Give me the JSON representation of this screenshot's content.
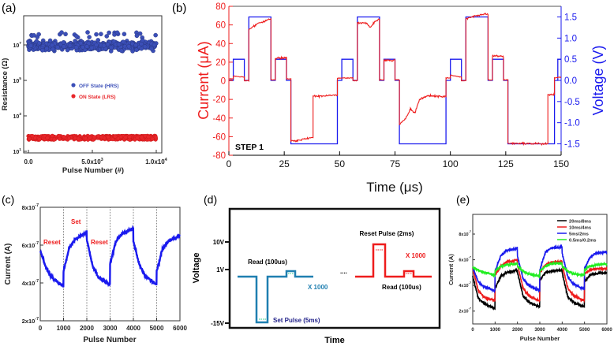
{
  "chart_data": [
    {
      "panel_label": "(a)",
      "type": "scatter",
      "xlabel": "Pulse Number (#)",
      "ylabel": "Resistance (Ω)",
      "y_scale": "log",
      "xlim": [
        0,
        10000
      ],
      "ylim": [
        10,
        500000000
      ],
      "x_ticks": [
        "0.0",
        "5.0x10^3",
        "1.0x10^4"
      ],
      "x_tick_values": [
        0,
        5000,
        10000
      ],
      "x_tick_labels": [
        {
          "base": "0.0",
          "exp": ""
        },
        {
          "base": "5.0x10",
          "exp": "3"
        },
        {
          "base": "1.0x10",
          "exp": "4"
        }
      ],
      "y_tick_values": [
        10,
        1000,
        100000,
        10000000
      ],
      "y_tick_labels": [
        {
          "base": "10",
          "exp": "1"
        },
        {
          "base": "10",
          "exp": "3"
        },
        {
          "base": "10",
          "exp": "5"
        },
        {
          "base": "10",
          "exp": "7"
        }
      ],
      "legend_position": "center",
      "series": [
        {
          "name": "OFF State (HRS)",
          "color": "#3b4fb8",
          "y_range": [
            3000000,
            60000000
          ],
          "n_points": 10000
        },
        {
          "name": "ON State (LRS)",
          "color": "#e8262a",
          "y_range": [
            45,
            75
          ],
          "n_points": 10000
        }
      ]
    },
    {
      "panel_label": "(b)",
      "type": "line",
      "xlabel": "Time (μs)",
      "ylabel": "Current (μA)",
      "ylabel_right": "Voltage (V)",
      "annotation": "STEP 1",
      "xlim": [
        0,
        150
      ],
      "ylim": [
        -80,
        80
      ],
      "ylim_right": [
        -1.77,
        1.75
      ],
      "x_ticks": [
        "0",
        "25",
        "50",
        "75",
        "100",
        "125",
        "150"
      ],
      "y_ticks": [
        "-80",
        "-60",
        "-40",
        "-20",
        "0",
        "20",
        "40",
        "60",
        "80"
      ],
      "y_ticks_right": [
        "-1.5",
        "-1.0",
        "-0.5",
        "0.0",
        "0.5",
        "1.0",
        "1.5"
      ],
      "series": [
        {
          "name": "Current",
          "axis": "left",
          "color": "#ee1c1c",
          "points": [
            [
              0,
              2
            ],
            [
              2,
              2
            ],
            [
              2,
              5
            ],
            [
              7,
              4
            ],
            [
              7,
              0
            ],
            [
              9,
              0
            ],
            [
              9,
              55
            ],
            [
              12,
              60
            ],
            [
              19,
              67
            ],
            [
              19,
              1
            ],
            [
              21,
              1
            ],
            [
              21,
              24
            ],
            [
              26,
              25
            ],
            [
              26,
              2
            ],
            [
              28,
              2
            ],
            [
              28,
              -65
            ],
            [
              33,
              -63
            ],
            [
              38,
              -61
            ],
            [
              38,
              -17
            ],
            [
              49,
              -15
            ],
            [
              49,
              3
            ],
            [
              56,
              3
            ],
            [
              56,
              0
            ],
            [
              58,
              0
            ],
            [
              58,
              62
            ],
            [
              62,
              62
            ],
            [
              64,
              57
            ],
            [
              66,
              64
            ],
            [
              68,
              66
            ],
            [
              68,
              1
            ],
            [
              70,
              1
            ],
            [
              70,
              22
            ],
            [
              75,
              22
            ],
            [
              75,
              1
            ],
            [
              77,
              1
            ],
            [
              77,
              -47
            ],
            [
              80,
              -40
            ],
            [
              82,
              -30
            ],
            [
              84,
              -35
            ],
            [
              86,
              -20
            ],
            [
              90,
              -16
            ],
            [
              98,
              -17
            ],
            [
              98,
              3
            ],
            [
              100,
              3
            ],
            [
              100,
              6
            ],
            [
              105,
              4
            ],
            [
              105,
              0
            ],
            [
              107,
              0
            ],
            [
              107,
              67
            ],
            [
              112,
              70
            ],
            [
              117,
              72
            ],
            [
              117,
              1
            ],
            [
              119,
              1
            ],
            [
              119,
              27
            ],
            [
              124,
              26
            ],
            [
              124,
              1
            ],
            [
              126,
              1
            ],
            [
              126,
              -67
            ],
            [
              144,
              -68
            ],
            [
              144,
              -15
            ],
            [
              147,
              -15
            ],
            [
              147,
              3
            ],
            [
              150,
              4
            ]
          ]
        },
        {
          "name": "Voltage",
          "axis": "right",
          "color": "#1a1aee",
          "points": [
            [
              0,
              0
            ],
            [
              2,
              0
            ],
            [
              2,
              0.5
            ],
            [
              7,
              0.5
            ],
            [
              7,
              0
            ],
            [
              9,
              0
            ],
            [
              9,
              1.5
            ],
            [
              19,
              1.5
            ],
            [
              19,
              0
            ],
            [
              21,
              0
            ],
            [
              21,
              0.5
            ],
            [
              26,
              0.5
            ],
            [
              26,
              0
            ],
            [
              28,
              0
            ],
            [
              28,
              -1.5
            ],
            [
              49,
              -1.5
            ],
            [
              49,
              0
            ],
            [
              51,
              0
            ],
            [
              51,
              0.5
            ],
            [
              56,
              0.5
            ],
            [
              56,
              0
            ],
            [
              58,
              0
            ],
            [
              58,
              1.5
            ],
            [
              68,
              1.5
            ],
            [
              68,
              0
            ],
            [
              70,
              0
            ],
            [
              70,
              0.5
            ],
            [
              75,
              0.5
            ],
            [
              75,
              0
            ],
            [
              77,
              0
            ],
            [
              77,
              -1.5
            ],
            [
              98,
              -1.5
            ],
            [
              98,
              0
            ],
            [
              100,
              0
            ],
            [
              100,
              0.5
            ],
            [
              105,
              0.5
            ],
            [
              105,
              0
            ],
            [
              107,
              0
            ],
            [
              107,
              1.5
            ],
            [
              117,
              1.5
            ],
            [
              117,
              0
            ],
            [
              119,
              0
            ],
            [
              119,
              0.5
            ],
            [
              124,
              0.5
            ],
            [
              124,
              0
            ],
            [
              126,
              0
            ],
            [
              126,
              -1.5
            ],
            [
              147,
              -1.5
            ],
            [
              147,
              0
            ],
            [
              148.5,
              0
            ],
            [
              148.5,
              0.5
            ],
            [
              150,
              0.5
            ]
          ]
        }
      ]
    },
    {
      "panel_label": "(c)",
      "type": "line",
      "xlabel": "Pulse Number",
      "ylabel": "Current (A)",
      "xlim": [
        0,
        6000
      ],
      "ylim": [
        2e-07,
        8e-07
      ],
      "x_ticks": [
        "0",
        "1000",
        "2000",
        "3000",
        "4000",
        "5000",
        "6000"
      ],
      "y_tick_labels": [
        {
          "base": "2x10",
          "exp": "-7"
        },
        {
          "base": "4x10",
          "exp": "-7"
        },
        {
          "base": "6x10",
          "exp": "-7"
        },
        {
          "base": "8x10",
          "exp": "-7"
        }
      ],
      "annotations": [
        "Reset",
        "Set",
        "Reset"
      ],
      "annotation_color": "#ee1c1c",
      "y_unit": "1e-7 A",
      "series": [
        {
          "color": "#1a1aee",
          "x": [
            0,
            250,
            500,
            999,
            1000,
            1250,
            1500,
            1999,
            2000,
            2250,
            2500,
            2999,
            3000,
            3250,
            3500,
            3999,
            4000,
            4250,
            4500,
            4999,
            5000,
            5250,
            5500,
            6000
          ],
          "y": [
            5.7,
            4.8,
            4.3,
            3.8,
            4.6,
            5.9,
            6.3,
            6.7,
            6.3,
            4.9,
            4.3,
            3.9,
            5.0,
            6.2,
            6.6,
            6.9,
            6.2,
            5.0,
            4.4,
            3.9,
            4.6,
            5.8,
            6.2,
            6.5
          ]
        }
      ]
    },
    {
      "panel_label": "(d)",
      "type": "diagram",
      "xlabel": "Time",
      "ylabel": "Voltage",
      "y_ticks": [
        "10V",
        "1V",
        "-15V"
      ],
      "labels": {
        "read_left": "Read (100us)",
        "x1000_left": "X 1000",
        "set_pulse": "Set  Pulse (5ms)",
        "dots": "....",
        "reset_pulse": "Reset Pulse (2ms)",
        "x1000_right": "X 1000",
        "read_right": "Read (100us)"
      },
      "colors": {
        "set": "#1f7fb0",
        "reset": "#ee1c1c",
        "set_text": "#1f7fb0",
        "set_pulse_text": "#22228a"
      }
    },
    {
      "panel_label": "(e)",
      "type": "line",
      "xlabel": "Pulse Number",
      "ylabel": "Current (A)",
      "xlim": [
        0,
        6000
      ],
      "ylim": [
        1e-07,
        9.5e-07
      ],
      "y_unit": "1e-7 A",
      "legend_position": "top-right",
      "x_ticks": [
        "0",
        "1000",
        "2000",
        "3000",
        "4000",
        "5000",
        "6000"
      ],
      "y_tick_labels": [
        {
          "base": "2x10",
          "exp": "-7"
        },
        {
          "base": "4x10",
          "exp": "-7"
        },
        {
          "base": "6x10",
          "exp": "-7"
        },
        {
          "base": "8x10",
          "exp": "-7"
        }
      ],
      "x": [
        0,
        250,
        500,
        999,
        1000,
        1250,
        1500,
        1999,
        2000,
        2250,
        2500,
        2999,
        3000,
        3250,
        3500,
        3999,
        4000,
        4250,
        4500,
        4999,
        5000,
        5250,
        5500,
        6000
      ],
      "series": [
        {
          "name": "20ms/8ms",
          "color": "#000000",
          "y": [
            4.7,
            3.0,
            2.6,
            2.2,
            3.8,
            4.7,
            5.0,
            5.2,
            5.0,
            3.2,
            2.7,
            2.3,
            4.4,
            5.0,
            5.1,
            5.2,
            5.0,
            3.1,
            2.7,
            2.3,
            4.3,
            4.8,
            4.9,
            5.0
          ]
        },
        {
          "name": "10ms/4ms",
          "color": "#ee1c1c",
          "y": [
            5.3,
            3.6,
            3.1,
            2.8,
            4.8,
            5.5,
            5.8,
            6.0,
            5.6,
            3.8,
            3.2,
            2.8,
            5.0,
            5.6,
            5.8,
            5.9,
            5.6,
            3.8,
            3.2,
            2.8,
            4.9,
            5.2,
            5.3,
            5.3
          ]
        },
        {
          "name": "5ms/2ms",
          "color": "#1a1aee",
          "y": [
            5.4,
            4.3,
            3.9,
            3.6,
            5.1,
            6.3,
            6.7,
            6.9,
            6.3,
            4.5,
            4.0,
            3.6,
            5.2,
            6.6,
            6.9,
            7.0,
            6.5,
            4.7,
            4.1,
            3.7,
            5.3,
            6.2,
            6.5,
            6.6
          ]
        },
        {
          "name": "0.5ms/0.2ms",
          "color": "#22ee22",
          "y": [
            5.4,
            5.2,
            5.0,
            4.8,
            5.1,
            5.5,
            5.6,
            5.7,
            5.5,
            5.1,
            4.9,
            4.7,
            5.1,
            5.5,
            5.7,
            5.7,
            5.5,
            5.1,
            4.9,
            4.8,
            5.2,
            5.5,
            5.6,
            5.7
          ]
        }
      ]
    }
  ]
}
